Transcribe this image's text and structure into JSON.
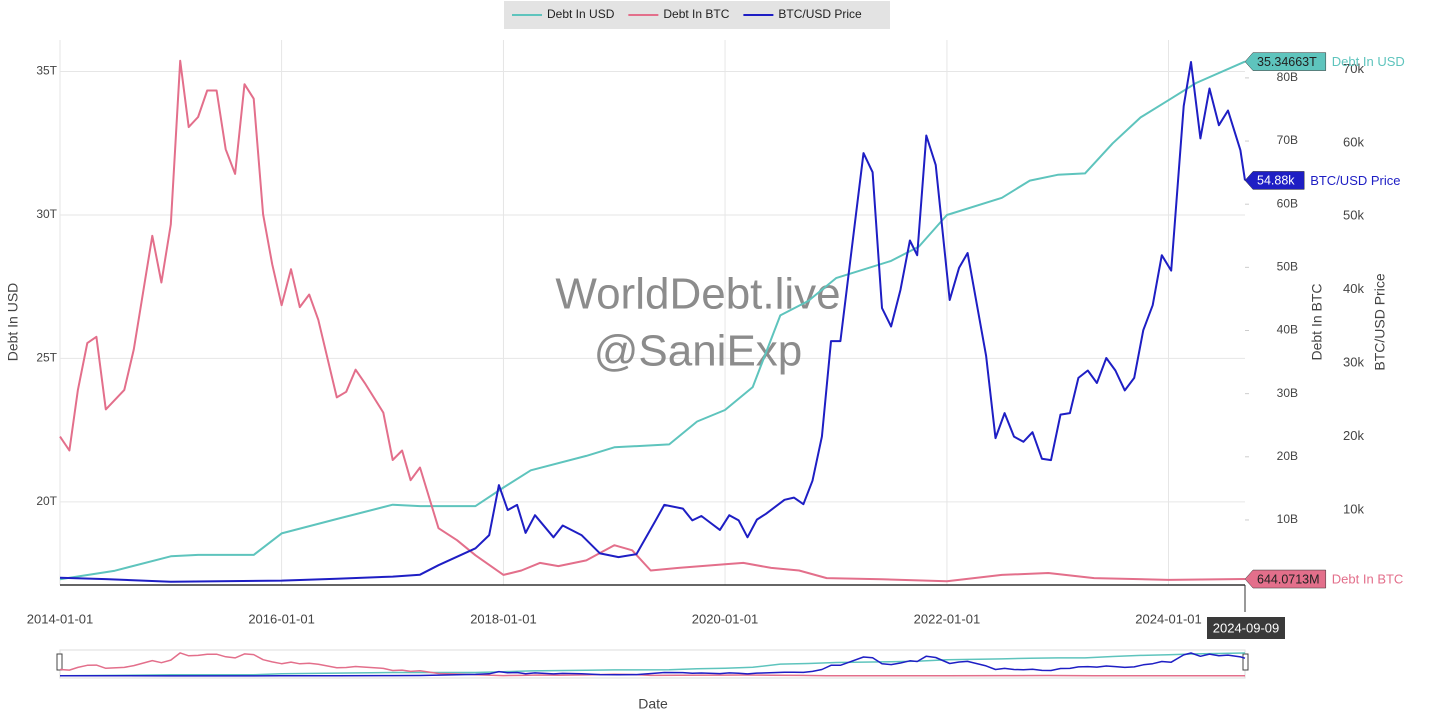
{
  "chart_data": {
    "type": "line",
    "legend": "top",
    "grid": true,
    "watermark": [
      "WorldDebt.live",
      "@SaniExp"
    ],
    "hover_label": "2024-09-09",
    "xlabel": "Date",
    "ylabel": "Debt In USD",
    "y2label": "Debt In BTC",
    "y3label": "BTC/USD Price",
    "xlim": [
      "2014-01-01",
      "2024-09-09"
    ],
    "xticks": [
      "2014-01-01",
      "2016-01-01",
      "2018-01-01",
      "2020-01-01",
      "2022-01-01",
      "2024-01-01"
    ],
    "ylim": [
      17100000000000,
      36100000000000
    ],
    "yticks": [
      {
        "value": 20000000000000,
        "label": "20T"
      },
      {
        "value": 25000000000000,
        "label": "25T"
      },
      {
        "value": 30000000000000,
        "label": "30T"
      },
      {
        "value": 35000000000000,
        "label": "35T"
      }
    ],
    "y2lim": [
      -300000000,
      86000000000
    ],
    "y2ticks": [
      {
        "value": 10000000000,
        "label": "10B"
      },
      {
        "value": 20000000000,
        "label": "20B"
      },
      {
        "value": 30000000000,
        "label": "30B"
      },
      {
        "value": 40000000000,
        "label": "40B"
      },
      {
        "value": 50000000000,
        "label": "50B"
      },
      {
        "value": 60000000000,
        "label": "60B"
      },
      {
        "value": 70000000000,
        "label": "70B"
      },
      {
        "value": 80000000000,
        "label": "80B"
      }
    ],
    "y3lim": [
      -200,
      74000
    ],
    "y3ticks": [
      {
        "value": 10000,
        "label": "10k"
      },
      {
        "value": 20000,
        "label": "20k"
      },
      {
        "value": 30000,
        "label": "30k"
      },
      {
        "value": 40000,
        "label": "40k"
      },
      {
        "value": 50000,
        "label": "50k"
      },
      {
        "value": 60000,
        "label": "60k"
      },
      {
        "value": 70000,
        "label": "70k"
      }
    ],
    "series": [
      {
        "name": "Debt In USD",
        "color": "#5ec4bd",
        "axis": "y",
        "end_label": "35.34663T",
        "x": [
          "2014-01-01",
          "2014-07-01",
          "2015-01-01",
          "2015-04-01",
          "2015-10-01",
          "2016-01-01",
          "2016-07-01",
          "2017-01-01",
          "2017-04-01",
          "2017-10-01",
          "2018-01-01",
          "2018-04-01",
          "2018-10-01",
          "2019-01-01",
          "2019-07-01",
          "2019-10-01",
          "2020-01-01",
          "2020-04-01",
          "2020-07-01",
          "2020-10-01",
          "2021-01-01",
          "2021-07-01",
          "2021-10-01",
          "2022-01-01",
          "2022-07-01",
          "2022-10-01",
          "2023-01-01",
          "2023-04-01",
          "2023-07-01",
          "2023-10-01",
          "2024-01-01",
          "2024-04-01",
          "2024-09-09"
        ],
        "values": [
          17300000000000,
          17600000000000,
          18100000000000,
          18150000000000,
          18150000000000,
          18900000000000,
          19400000000000,
          19900000000000,
          19850000000000,
          19850000000000,
          20500000000000,
          21100000000000,
          21600000000000,
          21900000000000,
          22000000000000,
          22800000000000,
          23200000000000,
          24000000000000,
          26500000000000,
          27000000000000,
          27800000000000,
          28400000000000,
          28900000000000,
          30000000000000,
          30600000000000,
          31200000000000,
          31400000000000,
          31450000000000,
          32500000000000,
          33400000000000,
          34000000000000,
          34600000000000,
          35346630000000
        ]
      },
      {
        "name": "Debt In BTC",
        "color": "#e36f8b",
        "axis": "y2",
        "end_label": "644.0713M",
        "x": [
          "2014-01-01",
          "2014-02-01",
          "2014-03-01",
          "2014-04-01",
          "2014-05-01",
          "2014-06-01",
          "2014-08-01",
          "2014-09-01",
          "2014-11-01",
          "2014-12-01",
          "2015-01-01",
          "2015-02-01",
          "2015-03-01",
          "2015-04-01",
          "2015-05-01",
          "2015-06-01",
          "2015-07-01",
          "2015-08-01",
          "2015-09-01",
          "2015-10-01",
          "2015-11-01",
          "2015-12-01",
          "2016-01-01",
          "2016-02-01",
          "2016-03-01",
          "2016-04-01",
          "2016-05-01",
          "2016-07-01",
          "2016-08-01",
          "2016-09-01",
          "2016-10-01",
          "2016-12-01",
          "2017-01-01",
          "2017-02-01",
          "2017-03-01",
          "2017-04-01",
          "2017-06-01",
          "2017-08-01",
          "2017-10-01",
          "2018-01-01",
          "2018-03-01",
          "2018-05-01",
          "2018-07-01",
          "2018-10-01",
          "2019-01-01",
          "2019-03-01",
          "2019-05-01",
          "2019-08-01",
          "2020-01-01",
          "2020-03-01",
          "2020-06-01",
          "2020-09-01",
          "2020-12-01",
          "2021-06-01",
          "2022-01-01",
          "2022-07-01",
          "2022-12-01",
          "2023-05-01",
          "2024-01-01",
          "2024-09-09"
        ],
        "values": [
          23200000000,
          21000000000,
          30600000000,
          38000000000,
          39000000000,
          27500000000,
          30600000000,
          37000000000,
          55000000000,
          47600000000,
          56800000000,
          82700000000,
          72200000000,
          73800000000,
          78000000000,
          78000000000,
          68700000000,
          64800000000,
          79000000000,
          76700000000,
          58400000000,
          50500000000,
          44000000000,
          49700000000,
          43700000000,
          45700000000,
          41700000000,
          29400000000,
          30300000000,
          33800000000,
          31700000000,
          27000000000,
          19500000000,
          21000000000,
          16300000000,
          18300000000,
          8700000000,
          6800000000,
          4400000000,
          1300000000,
          2000000000,
          3200000000,
          2700000000,
          3600000000,
          6000000000,
          5200000000,
          2000000000,
          2400000000,
          3000000000,
          3200000000,
          2400000000,
          2000000000,
          800000000,
          600000000,
          300000000,
          1300000000,
          1600000000,
          800000000,
          500000000,
          644071300
        ]
      },
      {
        "name": "BTC/USD Price",
        "color": "#1e1ec4",
        "axis": "y3",
        "end_label": "54.88k",
        "x": [
          "2014-01-01",
          "2014-06-01",
          "2015-01-01",
          "2016-01-01",
          "2016-07-01",
          "2017-01-01",
          "2017-04-01",
          "2017-06-01",
          "2017-10-01",
          "2017-11-15",
          "2017-12-17",
          "2018-01-15",
          "2018-02-15",
          "2018-03-15",
          "2018-04-15",
          "2018-06-15",
          "2018-07-15",
          "2018-09-15",
          "2018-11-15",
          "2019-01-15",
          "2019-03-15",
          "2019-05-15",
          "2019-06-15",
          "2019-08-15",
          "2019-09-15",
          "2019-10-15",
          "2019-12-15",
          "2020-01-15",
          "2020-02-15",
          "2020-03-15",
          "2020-04-15",
          "2020-05-15",
          "2020-07-15",
          "2020-08-15",
          "2020-09-15",
          "2020-10-15",
          "2020-11-15",
          "2020-12-15",
          "2021-01-15",
          "2021-04-01",
          "2021-05-01",
          "2021-06-01",
          "2021-07-01",
          "2021-08-01",
          "2021-09-01",
          "2021-09-25",
          "2021-10-25",
          "2021-11-25",
          "2022-01-10",
          "2022-02-10",
          "2022-03-10",
          "2022-05-10",
          "2022-06-10",
          "2022-07-10",
          "2022-08-10",
          "2022-09-10",
          "2022-10-10",
          "2022-11-10",
          "2022-12-10",
          "2023-01-10",
          "2023-02-10",
          "2023-03-10",
          "2023-04-10",
          "2023-05-10",
          "2023-06-10",
          "2023-07-10",
          "2023-08-10",
          "2023-09-10",
          "2023-10-10",
          "2023-11-10",
          "2023-12-10",
          "2024-01-10",
          "2024-02-20",
          "2024-03-15",
          "2024-04-15",
          "2024-05-15",
          "2024-06-15",
          "2024-07-15",
          "2024-08-25",
          "2024-09-09"
        ],
        "values": [
          800,
          600,
          250,
          400,
          650,
          950,
          1200,
          2500,
          4800,
          6600,
          13400,
          10000,
          10700,
          6900,
          9300,
          6300,
          7900,
          6600,
          4100,
          3600,
          4000,
          8400,
          10700,
          10200,
          8600,
          9200,
          7300,
          9300,
          8600,
          6300,
          8700,
          9500,
          11400,
          11700,
          10800,
          14000,
          20000,
          33000,
          33000,
          58600,
          56000,
          37500,
          35000,
          40000,
          46700,
          44700,
          61000,
          57000,
          38600,
          43000,
          45000,
          31000,
          19800,
          23200,
          20000,
          19300,
          20600,
          17000,
          16800,
          23000,
          23200,
          28000,
          29000,
          27300,
          30700,
          29000,
          26300,
          28000,
          34500,
          37900,
          44700,
          42600,
          65000,
          71000,
          60600,
          67400,
          62400,
          64400,
          59000,
          54880
        ]
      }
    ]
  }
}
